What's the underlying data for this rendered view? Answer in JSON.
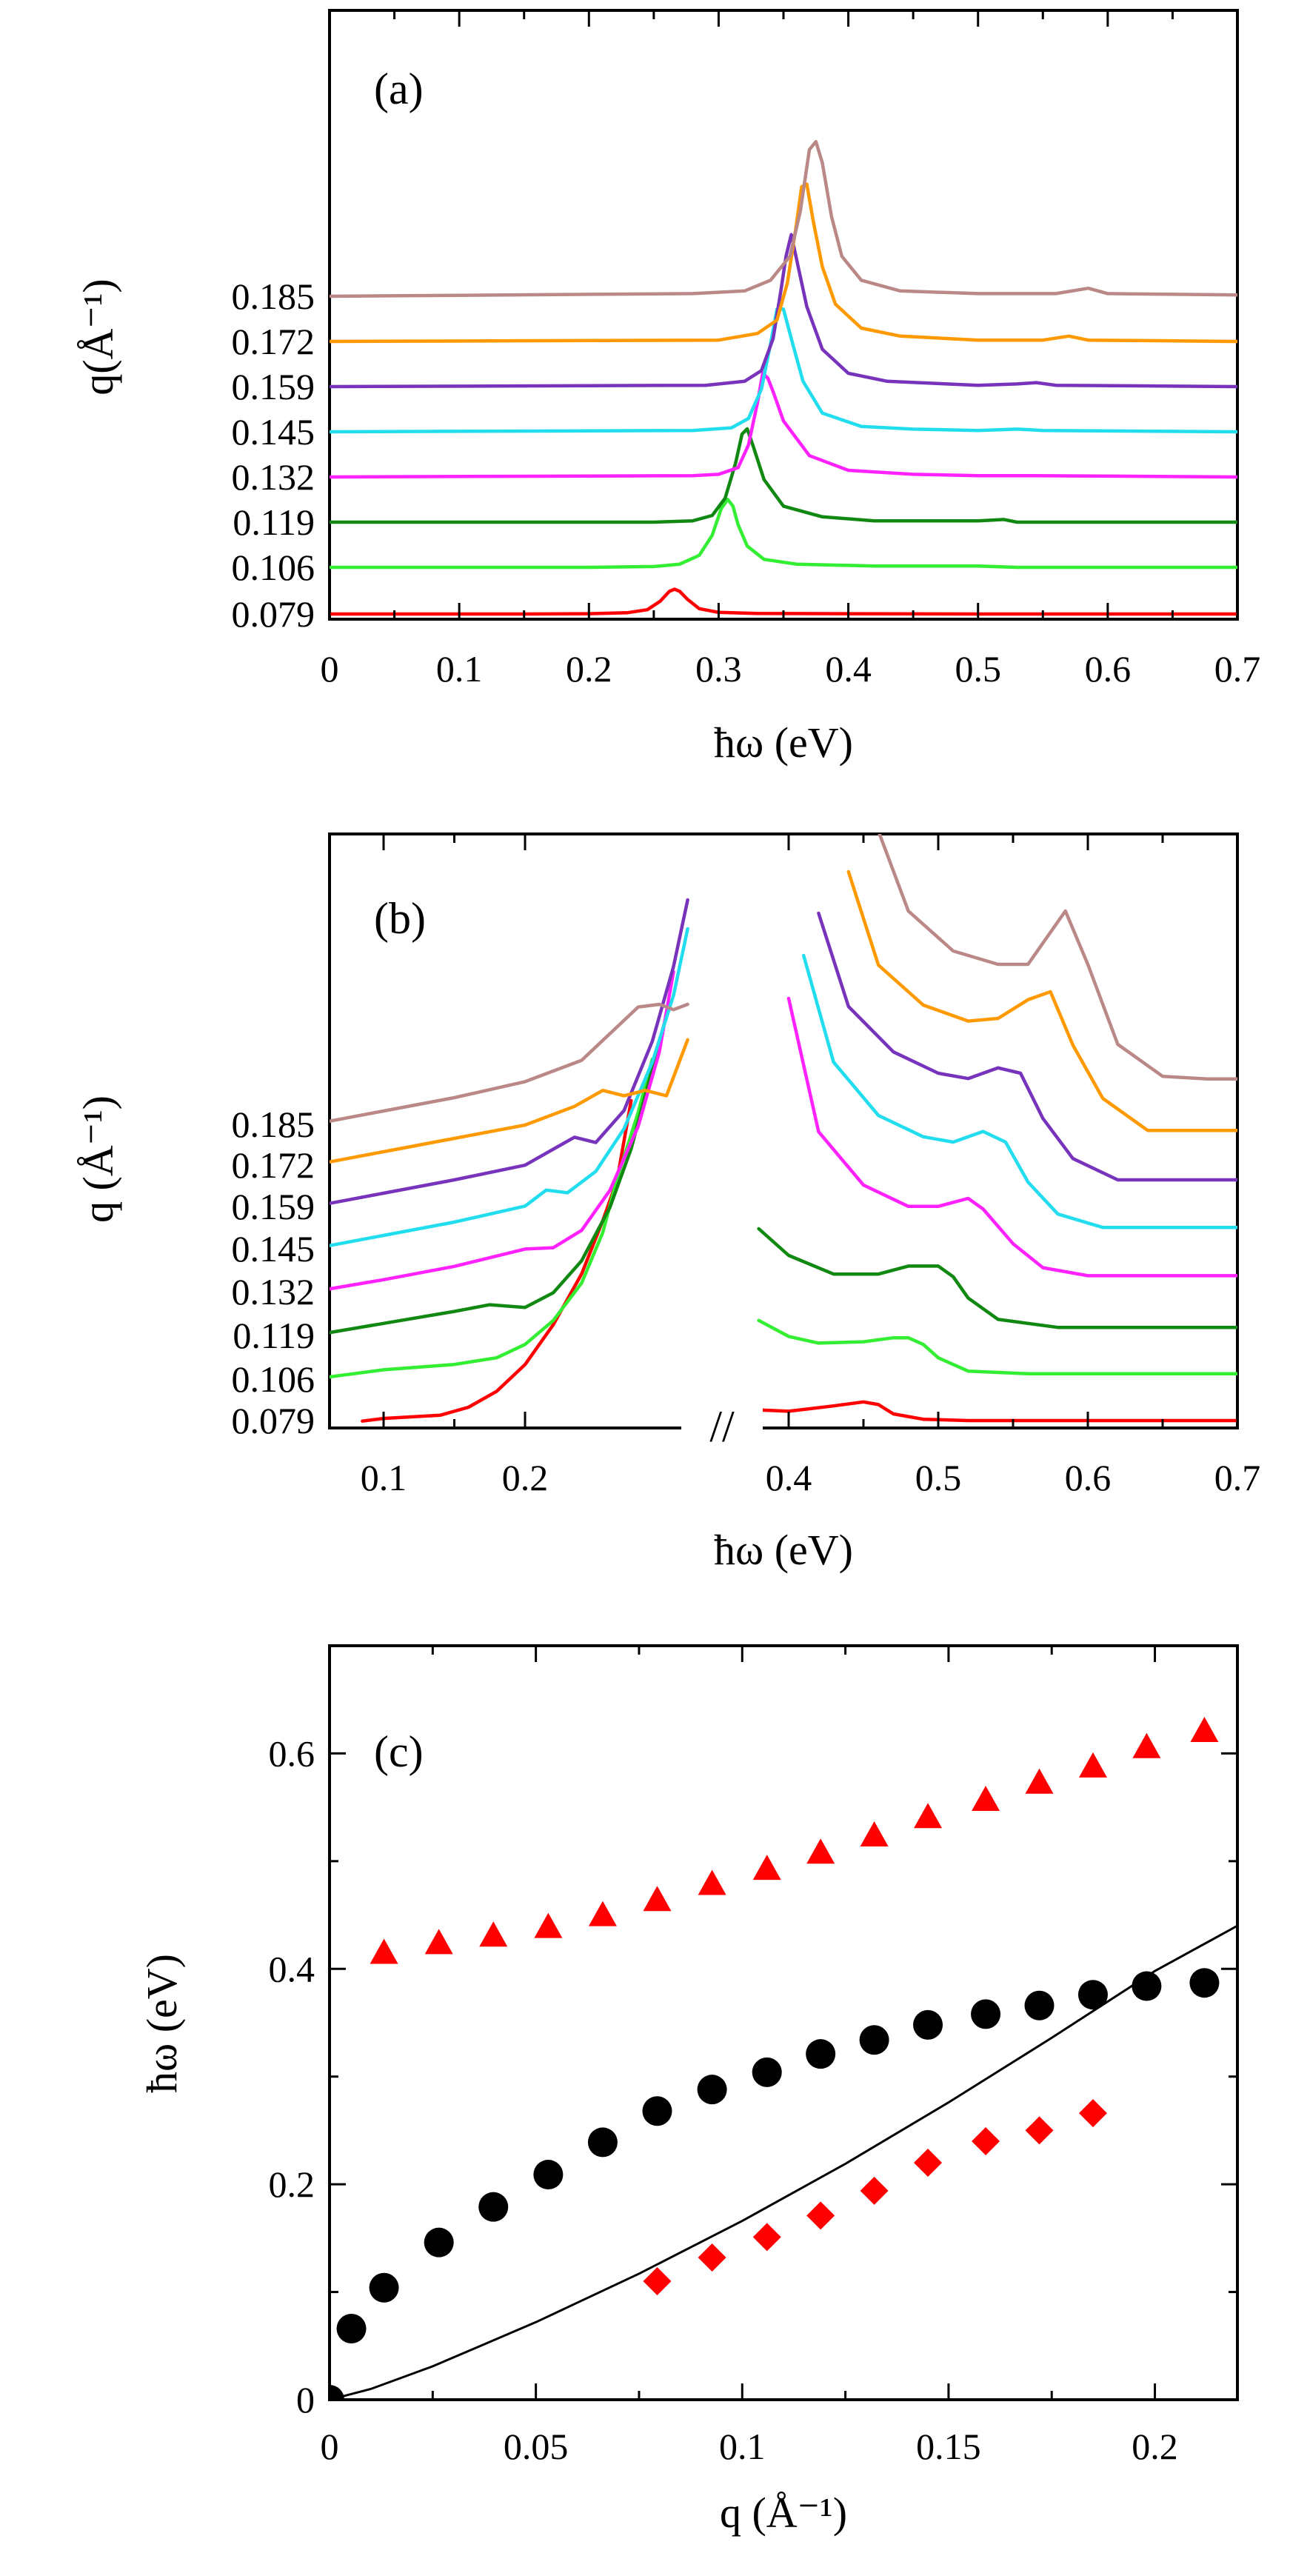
{
  "chart_data": [
    {
      "panel": "(a)",
      "type": "line",
      "xlabel": "ħω (eV)",
      "ylabel": "q(Å⁻¹)",
      "xlim": [
        0,
        0.7
      ],
      "x_ticks": [
        "0",
        "0.1",
        "0.2",
        "0.3",
        "0.4",
        "0.5",
        "0.6",
        "0.7"
      ],
      "y_tick_labels": [
        "0.079",
        "0.106",
        "0.119",
        "0.132",
        "0.145",
        "0.159",
        "0.172",
        "0.185"
      ],
      "series": [
        {
          "name": "0.079",
          "color": "#ff0000",
          "x": [
            0.0,
            0.15,
            0.2,
            0.23,
            0.245,
            0.255,
            0.262,
            0.266,
            0.27,
            0.276,
            0.285,
            0.3,
            0.33,
            0.4,
            0.5,
            0.7
          ],
          "y": [
            0,
            0.0,
            0.01,
            0.05,
            0.16,
            0.48,
            0.85,
            0.93,
            0.85,
            0.55,
            0.2,
            0.06,
            0.02,
            0.01,
            0.0,
            0.0
          ]
        },
        {
          "name": "0.106",
          "color": "#33ee33",
          "x": [
            0.0,
            0.2,
            0.25,
            0.27,
            0.285,
            0.295,
            0.302,
            0.307,
            0.311,
            0.315,
            0.322,
            0.335,
            0.36,
            0.42,
            0.5,
            0.53,
            0.7
          ],
          "y": [
            0,
            0.0,
            0.03,
            0.12,
            0.45,
            1.2,
            2.2,
            2.55,
            2.3,
            1.6,
            0.8,
            0.3,
            0.12,
            0.05,
            0.05,
            0.0,
            0.0
          ]
        },
        {
          "name": "0.119",
          "color": "#118811",
          "x": [
            0.0,
            0.25,
            0.28,
            0.295,
            0.305,
            0.313,
            0.318,
            0.322,
            0.327,
            0.335,
            0.35,
            0.38,
            0.42,
            0.5,
            0.52,
            0.53,
            0.7
          ],
          "y": [
            0,
            0.0,
            0.05,
            0.25,
            0.9,
            2.2,
            3.3,
            3.5,
            2.8,
            1.6,
            0.6,
            0.2,
            0.05,
            0.05,
            0.1,
            0.0,
            0.0
          ]
        },
        {
          "name": "0.132",
          "color": "#ff22ff",
          "x": [
            0.0,
            0.28,
            0.3,
            0.315,
            0.323,
            0.33,
            0.334,
            0.338,
            0.342,
            0.35,
            0.37,
            0.4,
            0.45,
            0.5,
            0.52,
            0.54,
            0.7
          ],
          "y": [
            0,
            0.05,
            0.1,
            0.35,
            1.2,
            2.8,
            3.9,
            3.7,
            3.2,
            2.1,
            0.8,
            0.25,
            0.1,
            0.05,
            0.05,
            0.05,
            0.0
          ]
        },
        {
          "name": "0.145",
          "color": "#22ddee",
          "x": [
            0.0,
            0.28,
            0.31,
            0.323,
            0.333,
            0.34,
            0.345,
            0.35,
            0.356,
            0.365,
            0.38,
            0.41,
            0.45,
            0.5,
            0.53,
            0.55,
            0.7
          ],
          "y": [
            0,
            0.05,
            0.15,
            0.5,
            1.6,
            3.3,
            4.6,
            4.6,
            3.5,
            1.9,
            0.7,
            0.2,
            0.1,
            0.05,
            0.1,
            0.05,
            0.0
          ]
        },
        {
          "name": "0.159",
          "color": "#7733bb",
          "x": [
            0.0,
            0.29,
            0.32,
            0.333,
            0.342,
            0.348,
            0.352,
            0.356,
            0.36,
            0.368,
            0.38,
            0.4,
            0.43,
            0.5,
            0.53,
            0.545,
            0.56,
            0.7
          ],
          "y": [
            0,
            0.05,
            0.2,
            0.6,
            1.8,
            3.6,
            4.9,
            5.7,
            4.8,
            3.0,
            1.4,
            0.5,
            0.2,
            0.05,
            0.1,
            0.15,
            0.05,
            0.0
          ]
        },
        {
          "name": "0.172",
          "color": "#ff9900",
          "x": [
            0.0,
            0.3,
            0.33,
            0.345,
            0.353,
            0.36,
            0.364,
            0.368,
            0.373,
            0.38,
            0.39,
            0.41,
            0.44,
            0.5,
            0.55,
            0.57,
            0.585,
            0.7
          ],
          "y": [
            0,
            0.05,
            0.3,
            0.8,
            2.2,
            4.4,
            5.8,
            5.9,
            4.5,
            2.8,
            1.4,
            0.5,
            0.2,
            0.05,
            0.05,
            0.2,
            0.05,
            0.0
          ]
        },
        {
          "name": "0.185",
          "color": "#bb8888",
          "x": [
            0.0,
            0.28,
            0.3,
            0.32,
            0.34,
            0.355,
            0.363,
            0.37,
            0.375,
            0.38,
            0.387,
            0.395,
            0.41,
            0.44,
            0.5,
            0.56,
            0.585,
            0.6,
            0.7
          ],
          "y": [
            0,
            0.1,
            0.15,
            0.2,
            0.6,
            1.5,
            3.2,
            5.5,
            5.8,
            5.0,
            3.0,
            1.5,
            0.6,
            0.2,
            0.1,
            0.1,
            0.3,
            0.1,
            0.05
          ]
        }
      ]
    },
    {
      "panel": "(b)",
      "type": "line",
      "xlabel": "ħω (eV)",
      "ylabel": "q (Å⁻¹)",
      "axis_break": "//",
      "x_ticks": [
        "0.1",
        "0.2",
        "0.4",
        "0.5",
        "0.6",
        "0.7"
      ],
      "y_tick_labels": [
        "0.079",
        "0.106",
        "0.119",
        "0.132",
        "0.145",
        "0.159",
        "0.172",
        "0.185"
      ],
      "series_left": [
        {
          "name": "0.079",
          "color": "#ff0000",
          "x": [
            0.085,
            0.1,
            0.14,
            0.16,
            0.18,
            0.2,
            0.22,
            0.24,
            0.255,
            0.265,
            0.275
          ],
          "y": [
            -0.02,
            0.08,
            0.2,
            0.5,
            1.1,
            2.1,
            3.6,
            5.5,
            7.5,
            9.0,
            12.0
          ]
        },
        {
          "name": "0.106",
          "color": "#33ee33",
          "x": [
            0.05,
            0.1,
            0.15,
            0.18,
            0.2,
            0.22,
            0.24,
            0.255,
            0.265,
            0.28,
            0.29
          ],
          "y": [
            0.0,
            0.35,
            0.55,
            0.8,
            1.3,
            2.2,
            3.6,
            5.5,
            7.5,
            10.0,
            12.0
          ]
        },
        {
          "name": "0.119",
          "color": "#118811",
          "x": [
            0.05,
            0.1,
            0.15,
            0.175,
            0.2,
            0.22,
            0.24,
            0.26,
            0.275,
            0.29,
            0.3
          ],
          "y": [
            0.0,
            0.45,
            0.9,
            1.15,
            1.05,
            1.6,
            2.8,
            4.8,
            7.0,
            10.0,
            12.0
          ]
        },
        {
          "name": "0.132",
          "color": "#ff22ff",
          "x": [
            0.05,
            0.1,
            0.15,
            0.2,
            0.22,
            0.24,
            0.26,
            0.28,
            0.295,
            0.305
          ],
          "y": [
            0.0,
            0.45,
            0.95,
            1.6,
            1.65,
            2.3,
            3.8,
            6.2,
            9.0,
            12.0
          ]
        },
        {
          "name": "0.145",
          "color": "#22ddee",
          "x": [
            0.05,
            0.1,
            0.15,
            0.2,
            0.215,
            0.23,
            0.25,
            0.27,
            0.29,
            0.305,
            0.315
          ],
          "y": [
            0.0,
            0.5,
            1.0,
            1.6,
            2.2,
            2.1,
            2.9,
            4.5,
            7.0,
            9.5,
            12.0
          ]
        },
        {
          "name": "0.159",
          "color": "#7733bb",
          "x": [
            0.05,
            0.1,
            0.15,
            0.2,
            0.235,
            0.25,
            0.27,
            0.29,
            0.305,
            0.315
          ],
          "y": [
            0.0,
            0.5,
            1.0,
            1.55,
            2.6,
            2.4,
            3.6,
            6.2,
            9.0,
            11.5
          ]
        },
        {
          "name": "0.172",
          "color": "#ff9900",
          "x": [
            0.05,
            0.1,
            0.15,
            0.2,
            0.235,
            0.255,
            0.27,
            0.285,
            0.3,
            0.315
          ],
          "y": [
            0.0,
            0.5,
            1.0,
            1.5,
            2.2,
            2.8,
            2.6,
            2.8,
            2.6,
            4.7
          ]
        },
        {
          "name": "0.185",
          "color": "#bb8888",
          "x": [
            0.05,
            0.1,
            0.15,
            0.2,
            0.24,
            0.26,
            0.28,
            0.295,
            0.305,
            0.315
          ],
          "y": [
            0.0,
            0.5,
            1.0,
            1.6,
            2.4,
            3.4,
            4.4,
            4.5,
            4.3,
            4.5
          ]
        }
      ],
      "series_right": [
        {
          "name": "0.079",
          "color": "#ff0000",
          "x": [
            0.38,
            0.4,
            0.43,
            0.45,
            0.46,
            0.47,
            0.49,
            0.52,
            0.6,
            0.7
          ],
          "y": [
            0.4,
            0.35,
            0.55,
            0.7,
            0.6,
            0.25,
            0.05,
            0.0,
            0.0,
            0.0
          ]
        },
        {
          "name": "0.106",
          "color": "#33ee33",
          "x": [
            0.38,
            0.4,
            0.42,
            0.45,
            0.47,
            0.48,
            0.49,
            0.5,
            0.52,
            0.56,
            0.6,
            0.7
          ],
          "y": [
            2.2,
            1.6,
            1.35,
            1.4,
            1.55,
            1.55,
            1.3,
            0.8,
            0.3,
            0.2,
            0.2,
            0.2
          ]
        },
        {
          "name": "0.119",
          "color": "#118811",
          "x": [
            0.38,
            0.4,
            0.43,
            0.46,
            0.48,
            0.5,
            0.51,
            0.52,
            0.54,
            0.58,
            0.65,
            0.7
          ],
          "y": [
            4.0,
            3.0,
            2.3,
            2.3,
            2.6,
            2.6,
            2.2,
            1.4,
            0.6,
            0.3,
            0.3,
            0.3
          ]
        },
        {
          "name": "0.132",
          "color": "#ff22ff",
          "x": [
            0.4,
            0.42,
            0.45,
            0.48,
            0.5,
            0.52,
            0.53,
            0.55,
            0.57,
            0.6,
            0.65,
            0.7
          ],
          "y": [
            11.0,
            6.0,
            4.0,
            3.2,
            3.2,
            3.5,
            3.1,
            1.8,
            0.9,
            0.6,
            0.6,
            0.6
          ]
        },
        {
          "name": "0.145",
          "color": "#22ddee",
          "x": [
            0.41,
            0.43,
            0.46,
            0.49,
            0.51,
            0.53,
            0.545,
            0.56,
            0.58,
            0.61,
            0.65,
            0.7
          ],
          "y": [
            11.0,
            7.0,
            5.0,
            4.2,
            4.0,
            4.4,
            4.0,
            2.5,
            1.3,
            0.8,
            0.8,
            0.8
          ]
        },
        {
          "name": "0.159",
          "color": "#7733bb",
          "x": [
            0.42,
            0.44,
            0.47,
            0.5,
            0.52,
            0.54,
            0.555,
            0.57,
            0.59,
            0.62,
            0.66,
            0.7
          ],
          "y": [
            11.0,
            7.5,
            5.8,
            5.0,
            4.8,
            5.2,
            5.0,
            3.3,
            1.8,
            1.0,
            1.0,
            1.0
          ]
        },
        {
          "name": "0.172",
          "color": "#ff9900",
          "x": [
            0.44,
            0.46,
            0.49,
            0.52,
            0.54,
            0.56,
            0.575,
            0.59,
            0.61,
            0.64,
            0.67,
            0.7
          ],
          "y": [
            11.0,
            7.5,
            6.0,
            5.4,
            5.5,
            6.2,
            6.5,
            4.5,
            2.5,
            1.3,
            1.3,
            1.3
          ]
        },
        {
          "name": "0.185",
          "color": "#bb8888",
          "x": [
            0.46,
            0.48,
            0.51,
            0.54,
            0.56,
            0.575,
            0.585,
            0.6,
            0.62,
            0.65,
            0.68,
            0.7
          ],
          "y": [
            11.0,
            8.0,
            6.5,
            6.0,
            6.0,
            7.2,
            8.0,
            6.0,
            3.0,
            1.8,
            1.7,
            1.7
          ]
        }
      ]
    },
    {
      "panel": "(c)",
      "type": "scatter",
      "xlabel": "q (Å⁻¹)",
      "ylabel": "ħω (eV)",
      "xlim": [
        0,
        0.22
      ],
      "ylim": [
        0,
        0.7
      ],
      "x_ticks": [
        "0",
        "0.05",
        "0.1",
        "0.15",
        "0.2"
      ],
      "y_ticks": [
        "0",
        "0.2",
        "0.4",
        "0.6"
      ],
      "series": [
        {
          "marker": "circle",
          "color": "#000000",
          "x": [
            0.0,
            0.0053,
            0.0132,
            0.0265,
            0.0397,
            0.053,
            0.0662,
            0.0794,
            0.0927,
            0.106,
            0.119,
            0.132,
            0.145,
            0.159,
            0.172,
            0.185,
            0.198,
            0.212
          ],
          "y": [
            0.0,
            0.066,
            0.104,
            0.146,
            0.179,
            0.209,
            0.239,
            0.268,
            0.288,
            0.304,
            0.321,
            0.334,
            0.348,
            0.358,
            0.366,
            0.376,
            0.384,
            0.387
          ]
        },
        {
          "marker": "triangle",
          "color": "#ff0000",
          "x": [
            0.0132,
            0.0265,
            0.0397,
            0.053,
            0.0662,
            0.0794,
            0.0927,
            0.106,
            0.119,
            0.132,
            0.145,
            0.159,
            0.172,
            0.185,
            0.198,
            0.212
          ],
          "y": [
            0.414,
            0.423,
            0.43,
            0.438,
            0.449,
            0.463,
            0.478,
            0.492,
            0.507,
            0.523,
            0.54,
            0.556,
            0.572,
            0.587,
            0.605,
            0.62
          ]
        },
        {
          "marker": "diamond",
          "color": "#ff0000",
          "x": [
            0.0794,
            0.0927,
            0.106,
            0.119,
            0.132,
            0.145,
            0.159,
            0.172,
            0.185
          ],
          "y": [
            0.11,
            0.132,
            0.151,
            0.171,
            0.194,
            0.22,
            0.24,
            0.25,
            0.266
          ]
        },
        {
          "marker": "line",
          "color": "#000000",
          "x": [
            0.0,
            0.01,
            0.025,
            0.05,
            0.075,
            0.1,
            0.125,
            0.15,
            0.175,
            0.2,
            0.22
          ],
          "y": [
            0.0,
            0.01,
            0.031,
            0.072,
            0.117,
            0.166,
            0.219,
            0.276,
            0.336,
            0.398,
            0.44
          ]
        }
      ]
    }
  ]
}
